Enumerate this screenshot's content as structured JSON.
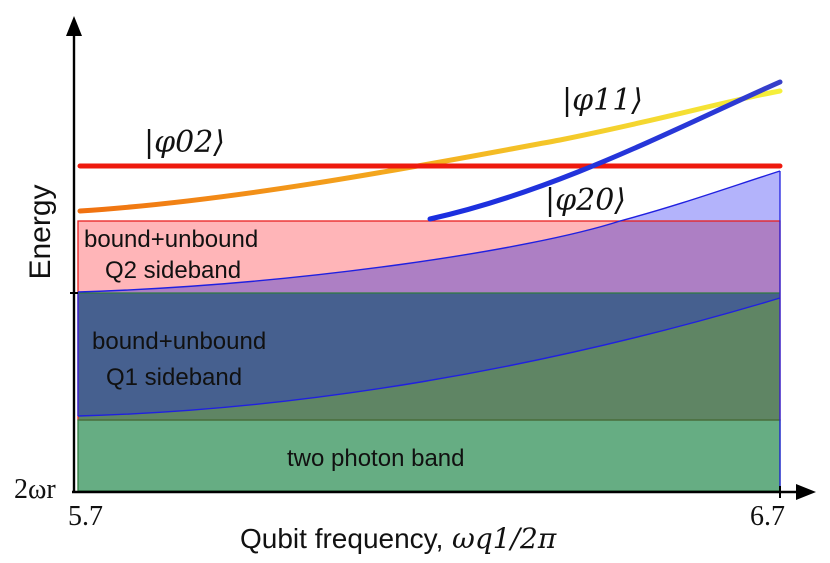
{
  "axes": {
    "y_label": "Energy",
    "x_label_text": "Qubit frequency,",
    "x_label_math": "ωq1/2π",
    "x_tick_min": "5.7",
    "x_tick_max": "6.7",
    "y_tick_min": "2ωr"
  },
  "bands": {
    "q2_line1": "bound+unbound",
    "q2_line2": "Q2 sideband",
    "q1_line1": "bound+unbound",
    "q1_line2": "Q1 sideband",
    "two_photon": "two photon band"
  },
  "states": {
    "phi02": "|φ02⟩",
    "phi11": "|φ11⟩",
    "phi20": "|φ20⟩"
  },
  "colors": {
    "two_photon_band": "#66ad83",
    "q1_band": "#46608f",
    "q1_overlap": "#5f8564",
    "q2_band": "#ffb5b8",
    "q2_overlap": "#ad7fc4",
    "upper_blue": "#b3b3fb",
    "phi02": "#ee1a0e",
    "phi20": "#2b39d6",
    "phi11_start": "#f07010",
    "phi11_end": "#f5f03a"
  }
}
